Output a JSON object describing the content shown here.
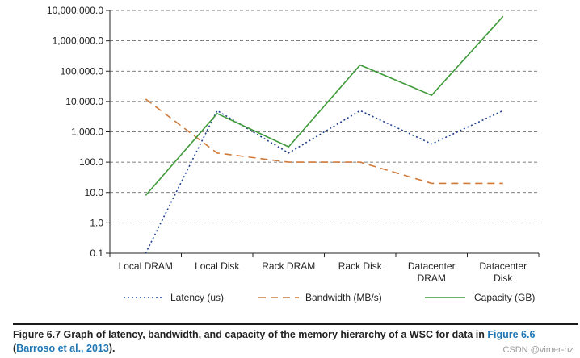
{
  "chart_data": {
    "type": "line",
    "title": "",
    "xlabel": "",
    "ylabel": "",
    "yscale": "log",
    "ylim": [
      0.1,
      10000000.0
    ],
    "grid": "horizontal dashed",
    "y_ticks": [
      {
        "value": 0.1,
        "label": "0.1"
      },
      {
        "value": 1,
        "label": "1.0"
      },
      {
        "value": 10,
        "label": "10.0"
      },
      {
        "value": 100,
        "label": "100.0"
      },
      {
        "value": 1000,
        "label": "1,000.0"
      },
      {
        "value": 10000,
        "label": "10,000.0"
      },
      {
        "value": 100000,
        "label": "100,000.0"
      },
      {
        "value": 1000000,
        "label": "1,000,000.0"
      },
      {
        "value": 10000000,
        "label": "10,000,000.0"
      }
    ],
    "categories": [
      [
        "Local DRAM"
      ],
      [
        "Local Disk"
      ],
      [
        "Rack DRAM"
      ],
      [
        "Rack Disk"
      ],
      [
        "Datacenter",
        "DRAM"
      ],
      [
        "Datacenter",
        "Disk"
      ]
    ],
    "series": [
      {
        "name": "Latency (us)",
        "color": "#1f3f8f",
        "style": "dotted",
        "values": [
          0.1,
          5000,
          200,
          5000,
          400,
          5000
        ]
      },
      {
        "name": "Bandwidth (MB/s)",
        "color": "#d07a3a",
        "style": "dashed",
        "values": [
          12000,
          200,
          100,
          100,
          20,
          20
        ]
      },
      {
        "name": "Capacity (GB)",
        "color": "#3f9a3a",
        "style": "solid",
        "values": [
          8,
          4000,
          320,
          160000,
          16000,
          6400000
        ]
      }
    ],
    "legend_position": "bottom"
  },
  "caption": {
    "lead": "Figure 6.7",
    "text": "  Graph of latency, bandwidth, and capacity of the memory hierarchy of a WSC for data in ",
    "fig_ref": "Figure 6.6",
    "open_paren": "(",
    "cite_ref": "Barroso et al., 2013",
    "close": ")."
  },
  "watermark": "CSDN @vimer-hz"
}
